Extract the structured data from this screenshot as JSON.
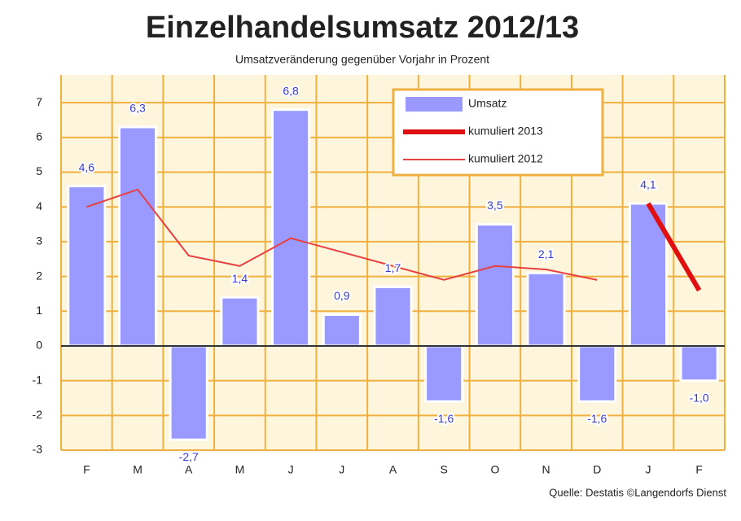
{
  "chart_data": {
    "type": "bar",
    "title": "Einzelhandelsumsatz 2012/13",
    "subtitle": "Umsatzveränderung gegenüber Vorjahr in Prozent",
    "source": "Quelle: Destatis ©Langendorfs Dienst",
    "categories": [
      "F",
      "M",
      "A",
      "M",
      "J",
      "J",
      "A",
      "S",
      "O",
      "N",
      "D",
      "J",
      "F"
    ],
    "series": [
      {
        "name": "Umsatz",
        "type": "bar",
        "color": "#9999ff",
        "values": [
          4.6,
          6.3,
          -2.7,
          1.4,
          6.8,
          0.9,
          1.7,
          -1.6,
          3.5,
          2.1,
          -1.6,
          4.1,
          -1.0
        ],
        "value_labels": [
          "4,6",
          "6,3",
          "-2,7",
          "1,4",
          "6,8",
          "0,9",
          "1,7",
          "-1,6",
          "3,5",
          "2,1",
          "-1,6",
          "4,1",
          "-1,0"
        ]
      },
      {
        "name": "kumuliert 2013",
        "type": "line",
        "color": "#e01010",
        "width": 6,
        "values": [
          null,
          null,
          null,
          null,
          null,
          null,
          null,
          null,
          null,
          null,
          null,
          4.1,
          1.6
        ]
      },
      {
        "name": "kumuliert 2012",
        "type": "line",
        "color": "#e84040",
        "width": 2,
        "values": [
          4.0,
          4.5,
          2.6,
          2.3,
          3.1,
          2.7,
          2.3,
          1.9,
          2.3,
          2.2,
          1.9,
          null,
          null
        ]
      }
    ],
    "ylim": [
      -3,
      7.8
    ],
    "yticks": [
      -3,
      -2,
      -1,
      0,
      1,
      2,
      3,
      4,
      5,
      6,
      7
    ],
    "grid": true,
    "legend": "top-right"
  }
}
